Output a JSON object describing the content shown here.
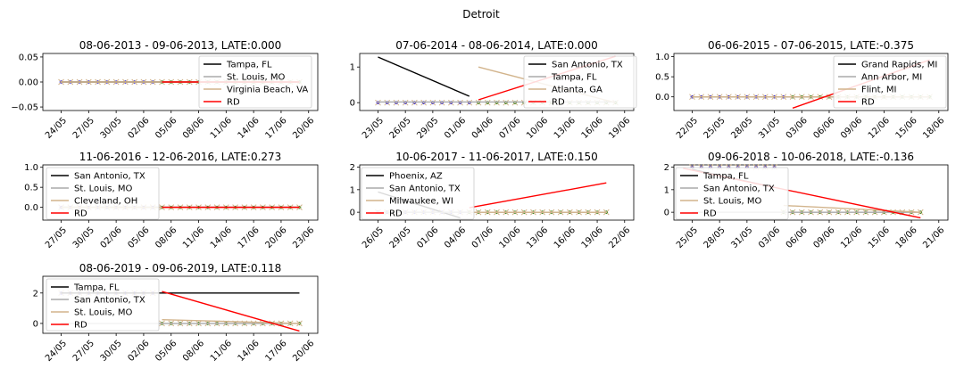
{
  "figure": {
    "suptitle": "Detroit"
  },
  "colors": {
    "treated_line": "#000000",
    "control1_line": "#aaaaaa",
    "control2_line": "#d2b48c",
    "rd_line": "#ff0000",
    "pre_marker": "#0000ff",
    "post_marker": "#008000",
    "cross_marker": "#d2b48c"
  },
  "chart_data": [
    {
      "type": "line",
      "title": "08-06-2013 - 09-06-2013, LATE:0.000",
      "x_range": [
        "2013-05-22",
        "2013-06-21"
      ],
      "x_ticks": [
        "24/05",
        "27/05",
        "30/05",
        "02/06",
        "05/06",
        "08/06",
        "11/06",
        "14/06",
        "17/06",
        "20/06"
      ],
      "y_ticks": [
        "0.05",
        "0.00",
        "−0.05"
      ],
      "ylim": [
        -0.057,
        0.057
      ],
      "cutoff": "2013-06-03",
      "legend": [
        "Tampa, FL",
        "St. Louis, MO",
        "Virginia Beach, VA",
        "RD"
      ],
      "points_pre": {
        "start": "2013-05-24",
        "end": "2013-06-03",
        "value": 0
      },
      "points_post": {
        "start": "2013-06-04",
        "end": "2013-06-19",
        "value": 0
      },
      "series": [
        {
          "name": "Tampa, FL",
          "x": [
            "2013-05-24",
            "2013-06-19"
          ],
          "y": [
            0,
            0
          ]
        },
        {
          "name": "St. Louis, MO",
          "x": [
            "2013-05-24",
            "2013-06-19"
          ],
          "y": [
            0,
            0
          ]
        },
        {
          "name": "Virginia Beach, VA",
          "x": [
            "2013-05-24",
            "2013-06-19"
          ],
          "y": [
            0,
            0
          ]
        },
        {
          "name": "RD",
          "x": [
            "2013-06-04",
            "2013-06-19"
          ],
          "y": [
            0,
            0
          ]
        }
      ]
    },
    {
      "type": "line",
      "title": "07-06-2014 - 08-06-2014, LATE:0.000",
      "x_range": [
        "2014-05-21",
        "2014-06-20"
      ],
      "x_ticks": [
        "23/05",
        "26/05",
        "29/05",
        "01/06",
        "04/06",
        "07/06",
        "10/06",
        "13/06",
        "16/06",
        "19/06"
      ],
      "y_ticks": [
        "1",
        "0"
      ],
      "ylim": [
        -0.22,
        1.38
      ],
      "cutoff": "2014-06-02",
      "legend": [
        "San Antonio, TX",
        "Tampa, FL",
        "Atlanta, GA",
        "RD"
      ],
      "points_pre": {
        "start": "2014-05-23",
        "end": "2014-06-02",
        "value": 0
      },
      "points_post": {
        "start": "2014-06-03",
        "end": "2014-06-18",
        "value": 0
      },
      "series": [
        {
          "name": "San Antonio, TX",
          "x": [
            "2014-05-23",
            "2014-06-02"
          ],
          "y": [
            1.28,
            0.18
          ]
        },
        {
          "name": "Tampa, FL",
          "x": [
            "2014-05-23",
            "2014-06-18"
          ],
          "y": [
            0.02,
            0.02
          ]
        },
        {
          "name": "Atlanta, GA",
          "x": [
            "2014-06-03",
            "2014-06-18"
          ],
          "y": [
            1.0,
            0.0
          ]
        },
        {
          "name": "RD",
          "x": [
            "2014-06-03",
            "2014-06-18"
          ],
          "y": [
            0.08,
            1.3
          ]
        }
      ]
    },
    {
      "type": "line",
      "title": "06-06-2015 - 07-06-2015, LATE:-0.375",
      "x_range": [
        "2015-05-20",
        "2015-06-19"
      ],
      "x_ticks": [
        "22/05",
        "25/05",
        "28/05",
        "31/05",
        "03/06",
        "06/06",
        "09/06",
        "12/06",
        "15/06",
        "18/06"
      ],
      "y_ticks": [
        "1.0",
        "0.5",
        "0.0"
      ],
      "ylim": [
        -0.34,
        1.08
      ],
      "cutoff": "2015-06-01",
      "legend": [
        "Grand Rapids, MI",
        "Ann Arbor, MI",
        "Flint, MI",
        "RD"
      ],
      "points_pre": {
        "start": "2015-05-22",
        "end": "2015-06-01",
        "value": 0
      },
      "points_post": {
        "start": "2015-06-02",
        "end": "2015-06-17",
        "value": 0
      },
      "series": [
        {
          "name": "Grand Rapids, MI",
          "x": [
            "2015-05-22",
            "2015-06-17"
          ],
          "y": [
            0,
            0
          ]
        },
        {
          "name": "Ann Arbor, MI",
          "x": [
            "2015-05-22",
            "2015-06-17"
          ],
          "y": [
            0,
            0
          ]
        },
        {
          "name": "Flint, MI",
          "x": [
            "2015-05-22",
            "2015-06-17"
          ],
          "y": [
            0,
            0
          ]
        },
        {
          "name": "RD",
          "x": [
            "2015-06-02",
            "2015-06-17"
          ],
          "y": [
            -0.28,
            0.92
          ]
        }
      ]
    },
    {
      "type": "line",
      "title": "11-06-2016 - 12-06-2016, LATE:0.273",
      "x_range": [
        "2016-05-25",
        "2016-06-24"
      ],
      "x_ticks": [
        "27/05",
        "30/05",
        "02/06",
        "05/06",
        "08/06",
        "11/06",
        "14/06",
        "17/06",
        "20/06",
        "23/06"
      ],
      "y_ticks": [
        "1.0",
        "0.5",
        "0.0"
      ],
      "ylim": [
        -0.32,
        1.06
      ],
      "cutoff": "2016-06-06",
      "legend": [
        "San Antonio, TX",
        "St. Louis, MO",
        "Cleveland, OH",
        "RD"
      ],
      "points_pre": {
        "start": "2016-05-27",
        "end": "2016-06-06",
        "value": 0
      },
      "points_post": {
        "start": "2016-06-07",
        "end": "2016-06-22",
        "value": 0
      },
      "series": [
        {
          "name": "San Antonio, TX",
          "x": [
            "2016-05-27",
            "2016-06-22"
          ],
          "y": [
            0,
            0
          ]
        },
        {
          "name": "St. Louis, MO",
          "x": [
            "2016-05-27",
            "2016-06-22"
          ],
          "y": [
            0,
            0
          ]
        },
        {
          "name": "Cleveland, OH",
          "x": [
            "2016-05-27",
            "2016-06-22"
          ],
          "y": [
            0,
            0
          ]
        },
        {
          "name": "RD",
          "x": [
            "2016-06-07",
            "2016-06-22"
          ],
          "y": [
            0,
            0
          ]
        }
      ]
    },
    {
      "type": "line",
      "title": "10-06-2017 - 11-06-2017, LATE:0.150",
      "x_range": [
        "2017-05-24",
        "2017-06-23"
      ],
      "x_ticks": [
        "26/05",
        "29/05",
        "01/06",
        "04/06",
        "07/06",
        "10/06",
        "13/06",
        "16/06",
        "19/06",
        "22/06"
      ],
      "y_ticks": [
        "2",
        "1",
        "0"
      ],
      "ylim": [
        -0.35,
        2.1
      ],
      "cutoff": "2017-06-04",
      "legend": [
        "Phoenix, AZ",
        "San Antonio, TX",
        "Milwaukee, WI",
        "RD"
      ],
      "points_pre": {
        "start": "2017-05-26",
        "end": "2017-06-04",
        "value": 0
      },
      "points_post": {
        "start": "2017-06-05",
        "end": "2017-06-20",
        "value": 0
      },
      "series": [
        {
          "name": "Phoenix, AZ",
          "x": [
            "2017-05-26",
            "2017-06-04"
          ],
          "y": [
            0.9,
            -0.25
          ]
        },
        {
          "name": "San Antonio, TX",
          "x": [
            "2017-05-26",
            "2017-06-20"
          ],
          "y": [
            0,
            0
          ]
        },
        {
          "name": "Milwaukee, WI",
          "x": [
            "2017-06-05",
            "2017-06-20"
          ],
          "y": [
            0,
            0
          ]
        },
        {
          "name": "RD",
          "x": [
            "2017-06-05",
            "2017-06-20"
          ],
          "y": [
            0.2,
            1.3
          ]
        }
      ]
    },
    {
      "type": "line",
      "title": "09-06-2018 - 10-06-2018, LATE:-0.136",
      "x_range": [
        "2018-05-23",
        "2018-06-22"
      ],
      "x_ticks": [
        "25/05",
        "28/05",
        "31/05",
        "03/06",
        "06/06",
        "09/06",
        "12/06",
        "15/06",
        "18/06",
        "21/06"
      ],
      "y_ticks": [
        "2",
        "1",
        "0"
      ],
      "ylim": [
        -0.35,
        2.1
      ],
      "cutoff": "2018-06-03",
      "legend": [
        "Tampa, FL",
        "San Antonio, TX",
        "St. Louis, MO",
        "RD"
      ],
      "points_pre": {
        "start": "2018-05-25",
        "end": "2018-06-03",
        "value": 2
      },
      "points_post": {
        "start": "2018-06-04",
        "end": "2018-06-19",
        "value": 0
      },
      "series": [
        {
          "name": "Tampa, FL",
          "x": [
            "2018-05-25",
            "2018-06-03"
          ],
          "y": [
            1.9,
            1.1
          ]
        },
        {
          "name": "San Antonio, TX",
          "x": [
            "2018-05-25",
            "2018-06-19"
          ],
          "y": [
            0,
            0
          ]
        },
        {
          "name": "St. Louis, MO",
          "x": [
            "2018-06-04",
            "2018-06-19"
          ],
          "y": [
            0.3,
            0.0
          ]
        },
        {
          "name": "RD",
          "x": [
            "2018-05-24",
            "2018-06-19"
          ],
          "y": [
            1.95,
            -0.25
          ]
        }
      ]
    },
    {
      "type": "line",
      "title": "08-06-2019 - 09-06-2019, LATE:0.118",
      "x_range": [
        "2019-05-22",
        "2019-06-21"
      ],
      "x_ticks": [
        "24/05",
        "27/05",
        "30/05",
        "02/06",
        "05/06",
        "08/06",
        "11/06",
        "14/06",
        "17/06",
        "20/06"
      ],
      "y_ticks": [
        "2",
        "0"
      ],
      "ylim": [
        -0.65,
        3.1
      ],
      "cutoff": "2019-06-03",
      "legend": [
        "Tampa, FL",
        "San Antonio, TX",
        "St. Louis, MO",
        "RD"
      ],
      "points_pre": {
        "start": "2019-05-24",
        "end": "2019-06-03",
        "value": 2
      },
      "points_post": {
        "start": "2019-06-04",
        "end": "2019-06-19",
        "value": 0
      },
      "series": [
        {
          "name": "Tampa, FL",
          "x": [
            "2019-05-24",
            "2019-06-19"
          ],
          "y": [
            2,
            2
          ]
        },
        {
          "name": "San Antonio, TX",
          "x": [
            "2019-05-24",
            "2019-06-19"
          ],
          "y": [
            0,
            0
          ]
        },
        {
          "name": "St. Louis, MO",
          "x": [
            "2019-06-04",
            "2019-06-19"
          ],
          "y": [
            0.25,
            0.0
          ]
        },
        {
          "name": "RD",
          "x": [
            "2019-06-04",
            "2019-06-19"
          ],
          "y": [
            2.1,
            -0.5
          ]
        }
      ]
    }
  ]
}
